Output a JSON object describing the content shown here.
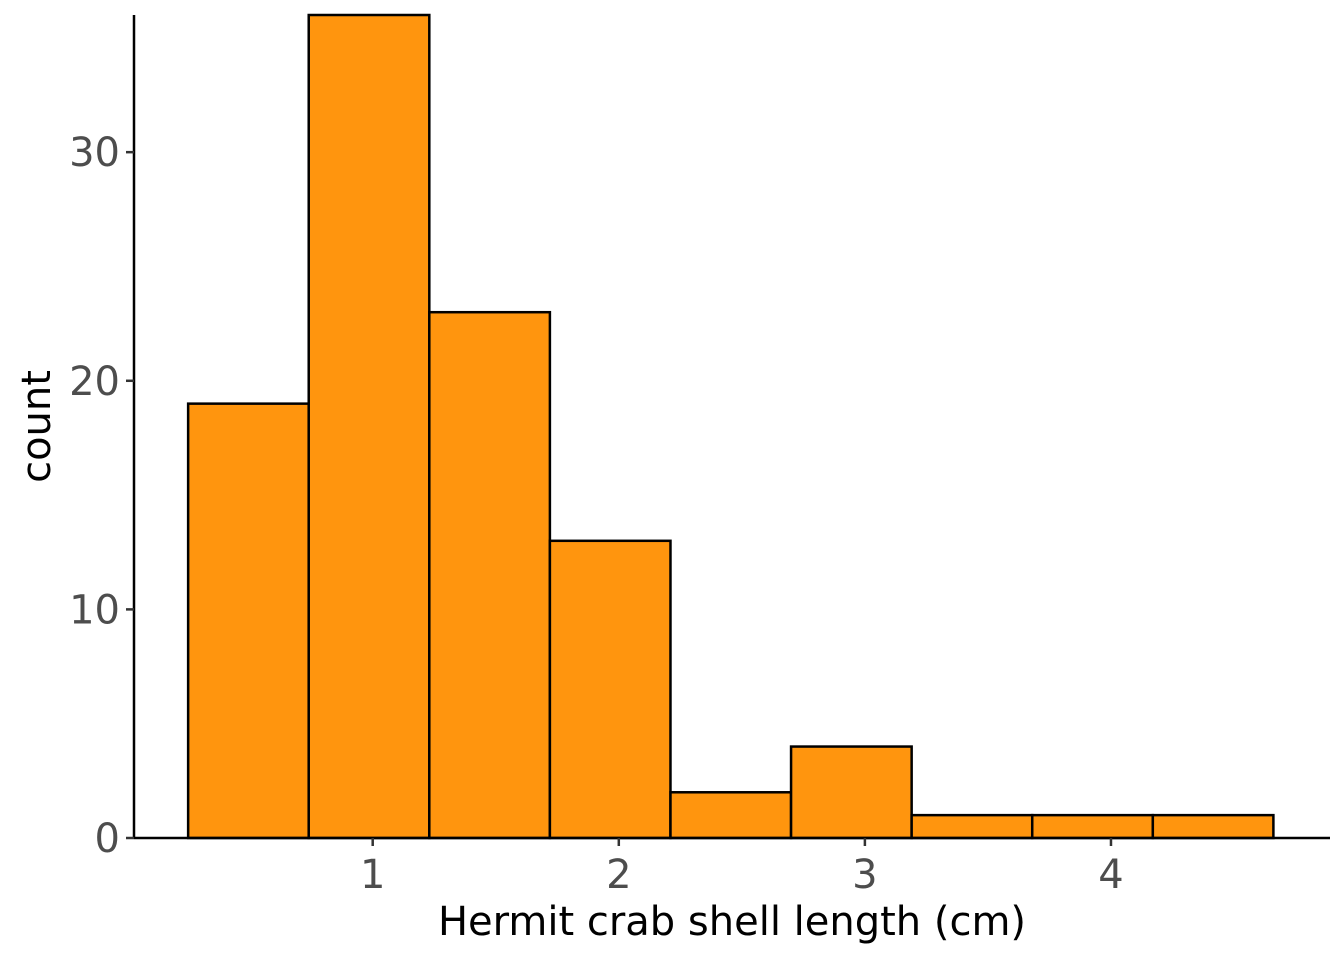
{
  "chart_data": {
    "type": "bar",
    "subtype": "histogram",
    "title": "",
    "xlabel": "Hermit crab shell length (cm)",
    "ylabel": "count",
    "bins": [
      {
        "x0": 0.25,
        "x1": 0.74,
        "count": 19
      },
      {
        "x0": 0.74,
        "x1": 1.23,
        "count": 36
      },
      {
        "x0": 1.23,
        "x1": 1.72,
        "count": 23
      },
      {
        "x0": 1.72,
        "x1": 2.21,
        "count": 13
      },
      {
        "x0": 2.21,
        "x1": 2.7,
        "count": 2
      },
      {
        "x0": 2.7,
        "x1": 3.19,
        "count": 4
      },
      {
        "x0": 3.19,
        "x1": 3.68,
        "count": 1
      },
      {
        "x0": 3.68,
        "x1": 4.17,
        "count": 1
      },
      {
        "x0": 4.17,
        "x1": 4.66,
        "count": 1
      }
    ],
    "xlim": [
      0.03,
      4.89
    ],
    "ylim": [
      0,
      36
    ],
    "x_ticks": [
      1,
      2,
      3,
      4
    ],
    "y_ticks": [
      0,
      10,
      20,
      30
    ],
    "bar_fill": "#FF950E",
    "bar_stroke": "#000000",
    "grid": false,
    "legend": "none"
  }
}
